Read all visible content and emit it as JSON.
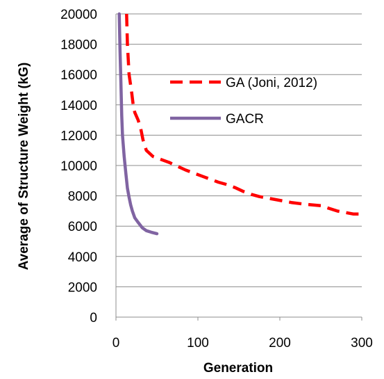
{
  "chart_data": {
    "type": "line",
    "title": "",
    "xlabel": "Generation",
    "ylabel": "Average of Structure Weight (kG)",
    "xlim": [
      0,
      300
    ],
    "ylim": [
      0,
      20000
    ],
    "x_ticks": [
      0,
      100,
      200,
      300
    ],
    "y_ticks": [
      0,
      2000,
      4000,
      6000,
      8000,
      10000,
      12000,
      14000,
      16000,
      18000,
      20000
    ],
    "grid": "horizontal",
    "legend_position": "right",
    "series": [
      {
        "name": "GA (Joni, 2012)",
        "color": "#ff0000",
        "style": "dashed",
        "x": [
          13,
          14,
          16,
          19,
          21,
          23,
          27,
          30,
          33,
          37,
          45,
          55,
          65,
          75,
          85,
          95,
          105,
          115,
          125,
          135,
          145,
          155,
          165,
          175,
          185,
          200,
          215,
          230,
          250,
          270,
          290,
          303
        ],
        "y": [
          20000,
          18000,
          16000,
          14900,
          14000,
          13500,
          13000,
          12500,
          11700,
          11000,
          10600,
          10400,
          10200,
          9950,
          9700,
          9500,
          9300,
          9100,
          8900,
          8750,
          8550,
          8300,
          8100,
          7950,
          7850,
          7700,
          7550,
          7450,
          7350,
          7000,
          6800,
          6800
        ]
      },
      {
        "name": "GACR",
        "color": "#8064a2",
        "style": "solid",
        "x": [
          4,
          5,
          6,
          7,
          8,
          10,
          12,
          14,
          16,
          18,
          20,
          23,
          27,
          32,
          37,
          43,
          50
        ],
        "y": [
          20000,
          17500,
          15500,
          13300,
          12000,
          10600,
          9500,
          8500,
          7900,
          7400,
          7000,
          6550,
          6250,
          5900,
          5700,
          5600,
          5500
        ]
      }
    ]
  }
}
